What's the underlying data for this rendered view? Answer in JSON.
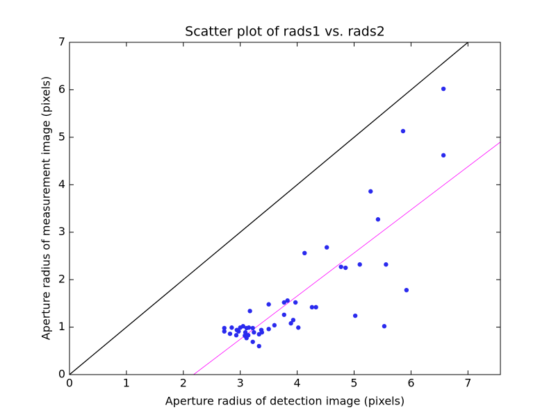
{
  "chart_data": {
    "type": "scatter",
    "title": "Scatter plot of rads1 vs. rads2",
    "xlabel": "Aperture radius of detection image (pixels)",
    "ylabel": "Aperture radius of measurement image (pixels)",
    "color": "#2a2aee",
    "x": [
      6.57,
      5.86,
      6.57,
      5.29,
      5.42,
      4.52,
      4.13,
      4.77,
      4.85,
      5.1,
      5.56,
      5.92,
      5.02,
      5.53,
      3.5,
      3.77,
      3.83,
      3.97,
      4.26,
      4.33,
      3.77,
      3.93,
      3.89,
      4.02,
      3.6,
      3.5,
      3.17,
      2.72,
      2.72,
      2.82,
      2.85,
      2.93,
      2.97,
      3.0,
      3.05,
      3.11,
      3.15,
      3.09,
      3.08,
      3.11,
      3.14,
      3.22,
      3.24,
      3.33,
      3.38,
      3.37,
      3.22,
      3.33,
      2.94
    ],
    "values": [
      6.02,
      5.13,
      4.62,
      3.86,
      3.27,
      2.68,
      2.56,
      2.27,
      2.25,
      2.32,
      2.32,
      1.78,
      1.24,
      1.02,
      1.48,
      1.52,
      1.56,
      1.52,
      1.42,
      1.42,
      1.26,
      1.15,
      1.08,
      0.99,
      1.04,
      0.96,
      1.34,
      0.98,
      0.91,
      0.86,
      0.99,
      0.83,
      0.91,
      0.99,
      1.02,
      0.98,
      0.99,
      0.89,
      0.82,
      0.77,
      0.83,
      0.98,
      0.89,
      0.85,
      0.89,
      0.94,
      0.69,
      0.6,
      0.94
    ],
    "lines": [
      {
        "color": "#000000",
        "x": [
          0,
          7
        ],
        "y": [
          0,
          7
        ]
      },
      {
        "color": "#ff00ff",
        "x": [
          2.18,
          7.57
        ],
        "y": [
          0,
          4.9
        ]
      }
    ],
    "xlim": [
      0,
      7.57
    ],
    "ylim": [
      0,
      7
    ],
    "xticks": [
      0,
      1,
      2,
      3,
      4,
      5,
      6,
      7
    ],
    "yticks": [
      0,
      1,
      2,
      3,
      4,
      5,
      6,
      7
    ]
  }
}
